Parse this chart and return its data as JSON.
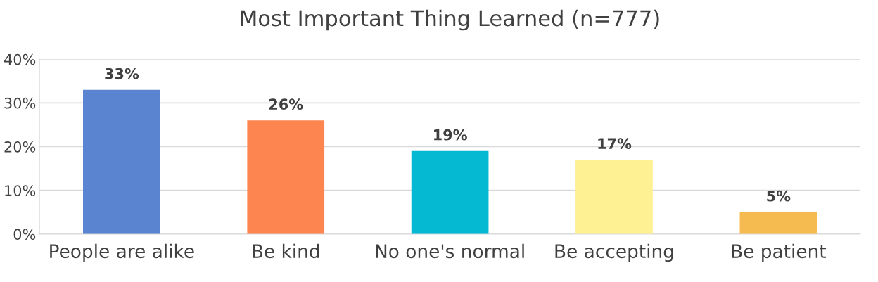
{
  "chart_data": {
    "type": "bar",
    "title": "Most Important Thing Learned (n=777)",
    "categories": [
      "People are alike",
      "Be kind",
      "No one's normal",
      "Be accepting",
      "Be patient"
    ],
    "values": [
      33,
      26,
      19,
      17,
      5
    ],
    "colors": [
      "#5b84d0",
      "#fd8550",
      "#06b9d3",
      "#fef193",
      "#f6bb50"
    ],
    "value_labels": [
      "33%",
      "26%",
      "19%",
      "17%",
      "5%"
    ],
    "ylim": [
      0,
      40
    ],
    "yticks": [
      {
        "value": 0,
        "label": "0%"
      },
      {
        "value": 10,
        "label": "10%"
      },
      {
        "value": 20,
        "label": "20%"
      },
      {
        "value": 30,
        "label": "30%"
      },
      {
        "value": 40,
        "label": "40%"
      }
    ],
    "grid": "y"
  }
}
